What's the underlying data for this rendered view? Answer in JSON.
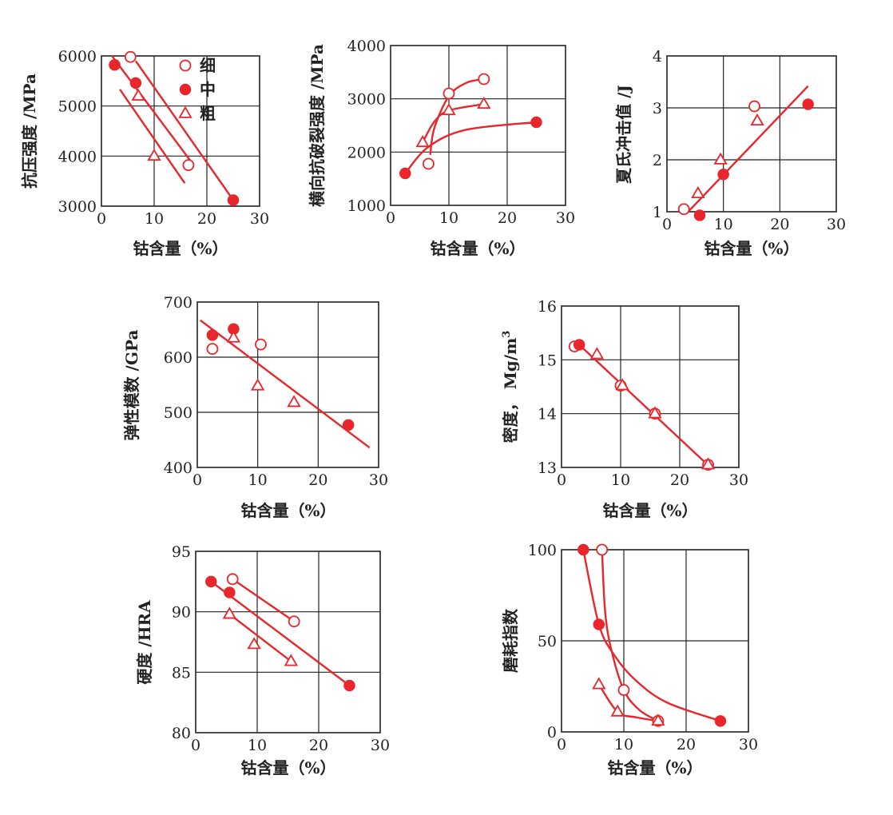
{
  "style": {
    "series_color": "#e8262b",
    "frame_color": "#222222",
    "grid_color": "#222222"
  },
  "legend": {
    "entries": [
      {
        "label": "细",
        "marker": "open-circle"
      },
      {
        "label": "中",
        "marker": "filled-circle"
      },
      {
        "label": "粗",
        "marker": "open-triangle"
      }
    ]
  },
  "chart_data": [
    {
      "type": "scatter",
      "id": "compressive",
      "title": "",
      "xlabel": "钴含量（%）",
      "ylabel": "抗压强度 /MPa",
      "xlim": [
        0,
        30
      ],
      "ylim": [
        3000,
        6000
      ],
      "x_ticks": [
        0,
        10,
        20,
        30
      ],
      "y_ticks": [
        3000,
        4000,
        5000,
        6000
      ],
      "x_tick_labels": [
        "0",
        "10",
        "20",
        "30"
      ],
      "y_tick_labels": [
        "3000",
        "4000",
        "5000",
        "6000"
      ],
      "grid": true,
      "legend": "top-right",
      "series": [
        {
          "name": "细",
          "marker": "open-circle",
          "points": [
            [
              5.5,
              5980
            ],
            [
              16.5,
              3820
            ]
          ]
        },
        {
          "name": "中",
          "marker": "filled-circle",
          "points": [
            [
              2.5,
              5820
            ],
            [
              6.5,
              5460
            ],
            [
              25,
              3120
            ]
          ]
        },
        {
          "name": "粗",
          "marker": "open-triangle",
          "points": [
            [
              7,
              5200
            ],
            [
              10,
              4000
            ]
          ]
        }
      ],
      "lines": [
        {
          "kind": "straight",
          "points": [
            [
              2,
              6000
            ],
            [
              17.5,
              3820
            ]
          ]
        },
        {
          "kind": "straight",
          "points": [
            [
              6.5,
              5900
            ],
            [
              25,
              3120
            ]
          ]
        },
        {
          "kind": "straight",
          "points": [
            [
              3.5,
              5330
            ],
            [
              15.8,
              3460
            ]
          ]
        }
      ]
    },
    {
      "type": "scatter",
      "id": "transverse-rupture",
      "title": "",
      "xlabel": "钴含量（%）",
      "ylabel": "横向抗破裂强度 /MPa",
      "xlim": [
        0,
        30
      ],
      "ylim": [
        1000,
        4000
      ],
      "x_ticks": [
        0,
        10,
        20,
        30
      ],
      "y_ticks": [
        1000,
        2000,
        3000,
        4000
      ],
      "x_tick_labels": [
        "0",
        "10",
        "20",
        "30"
      ],
      "y_tick_labels": [
        "1000",
        "2000",
        "3000",
        "4000"
      ],
      "grid": true,
      "series": [
        {
          "name": "细",
          "marker": "open-circle",
          "points": [
            [
              6.5,
              1780
            ],
            [
              10,
              3100
            ],
            [
              16,
              3370
            ]
          ]
        },
        {
          "name": "中",
          "marker": "filled-circle",
          "points": [
            [
              2.5,
              1600
            ],
            [
              25,
              2560
            ]
          ]
        },
        {
          "name": "粗",
          "marker": "open-triangle",
          "points": [
            [
              5.5,
              2180
            ],
            [
              10,
              2780
            ],
            [
              16,
              2900
            ]
          ]
        }
      ],
      "lines": [
        {
          "kind": "curve",
          "points": [
            [
              6.8,
              1950
            ],
            [
              7.5,
              2450
            ],
            [
              10,
              3050
            ],
            [
              13,
              3300
            ],
            [
              16,
              3370
            ]
          ]
        },
        {
          "kind": "curve",
          "points": [
            [
              2.5,
              1600
            ],
            [
              6.5,
              2100
            ],
            [
              13,
              2420
            ],
            [
              25,
              2560
            ]
          ]
        },
        {
          "kind": "curve",
          "points": [
            [
              5.5,
              2180
            ],
            [
              7.5,
              2570
            ],
            [
              10,
              2780
            ],
            [
              16,
              2900
            ]
          ]
        }
      ]
    },
    {
      "type": "scatter",
      "id": "charpy-impact",
      "title": "",
      "xlabel": "钴含量（%）",
      "ylabel": "夏氏冲击值 /J",
      "xlim": [
        0,
        30
      ],
      "ylim": [
        1,
        4
      ],
      "x_ticks": [
        0,
        10,
        20,
        30
      ],
      "y_ticks": [
        1,
        2,
        3,
        4
      ],
      "x_tick_labels": [
        "0",
        "10",
        "20",
        "30"
      ],
      "y_tick_labels": [
        "1",
        "2",
        "3",
        "4"
      ],
      "grid": true,
      "series": [
        {
          "name": "细",
          "marker": "open-circle",
          "points": [
            [
              3,
              1.05
            ],
            [
              15.5,
              3.03
            ]
          ]
        },
        {
          "name": "中",
          "marker": "filled-circle",
          "points": [
            [
              5.8,
              0.93
            ],
            [
              10,
              1.72
            ],
            [
              25,
              3.07
            ]
          ]
        },
        {
          "name": "粗",
          "marker": "open-triangle",
          "points": [
            [
              5.5,
              1.35
            ],
            [
              9.5,
              2.0
            ],
            [
              16,
              2.75
            ]
          ]
        }
      ],
      "lines": [
        {
          "kind": "straight",
          "points": [
            [
              3.5,
              0.97
            ],
            [
              25,
              3.42
            ]
          ]
        }
      ]
    },
    {
      "type": "scatter",
      "id": "elastic-modulus",
      "title": "",
      "xlabel": "钴含量（%）",
      "ylabel": "弹性模数 /GPa",
      "xlim": [
        0,
        30
      ],
      "ylim": [
        400,
        700
      ],
      "x_ticks": [
        0,
        10,
        20,
        30
      ],
      "y_ticks": [
        400,
        500,
        600,
        700
      ],
      "x_tick_labels": [
        "0",
        "10",
        "20",
        "30"
      ],
      "y_tick_labels": [
        "400",
        "500",
        "600",
        "700"
      ],
      "grid": true,
      "series": [
        {
          "name": "细",
          "marker": "open-circle",
          "points": [
            [
              2.5,
              615
            ],
            [
              10.5,
              623
            ]
          ]
        },
        {
          "name": "中",
          "marker": "filled-circle",
          "points": [
            [
              2.5,
              640
            ],
            [
              6,
              651
            ],
            [
              25,
              477
            ]
          ]
        },
        {
          "name": "粗",
          "marker": "open-triangle",
          "points": [
            [
              6,
              635
            ],
            [
              10,
              548
            ],
            [
              16,
              518
            ]
          ]
        }
      ],
      "lines": [
        {
          "kind": "straight",
          "points": [
            [
              0.5,
              667
            ],
            [
              28.5,
              436
            ]
          ]
        }
      ]
    },
    {
      "type": "scatter",
      "id": "density",
      "title": "",
      "xlabel": "钴含量（%）",
      "ylabel": "密度， Mg/m",
      "ylabel_superscript": "3",
      "xlim": [
        0,
        30
      ],
      "ylim": [
        13,
        16
      ],
      "x_ticks": [
        0,
        10,
        20,
        30
      ],
      "y_ticks": [
        13,
        14,
        15,
        16
      ],
      "x_tick_labels": [
        "0",
        "10",
        "20",
        "30"
      ],
      "y_tick_labels": [
        "13",
        "14",
        "15",
        "16"
      ],
      "grid": true,
      "series": [
        {
          "name": "细",
          "marker": "open-circle",
          "points": [
            [
              2.2,
              15.25
            ],
            [
              10,
              14.52
            ],
            [
              15.8,
              14.0
            ],
            [
              24.8,
              13.05
            ]
          ]
        },
        {
          "name": "中",
          "marker": "filled-circle",
          "points": [
            [
              3,
              15.28
            ]
          ]
        },
        {
          "name": "粗",
          "marker": "open-triangle",
          "points": [
            [
              6,
              15.1
            ],
            [
              10.3,
              14.52
            ],
            [
              15.8,
              14.0
            ],
            [
              24.8,
              13.05
            ]
          ]
        }
      ],
      "lines": [
        {
          "kind": "straight",
          "points": [
            [
              3,
              15.28
            ],
            [
              25,
              13.02
            ]
          ]
        }
      ]
    },
    {
      "type": "scatter",
      "id": "hardness",
      "title": "",
      "xlabel": "钴含量（%）",
      "ylabel": "硬度 /HRA",
      "xlim": [
        0,
        30
      ],
      "ylim": [
        80,
        95
      ],
      "x_ticks": [
        0,
        10,
        20,
        30
      ],
      "y_ticks": [
        80,
        85,
        90,
        95
      ],
      "x_tick_labels": [
        "0",
        "10",
        "20",
        "30"
      ],
      "y_tick_labels": [
        "80",
        "85",
        "90",
        "95"
      ],
      "grid": true,
      "series": [
        {
          "name": "细",
          "marker": "open-circle",
          "points": [
            [
              6,
              92.7
            ],
            [
              16,
              89.2
            ]
          ]
        },
        {
          "name": "中",
          "marker": "filled-circle",
          "points": [
            [
              2.5,
              92.5
            ],
            [
              5.5,
              91.6
            ],
            [
              25,
              83.9
            ]
          ]
        },
        {
          "name": "粗",
          "marker": "open-triangle",
          "points": [
            [
              5.5,
              89.8
            ],
            [
              9.5,
              87.3
            ],
            [
              15.5,
              85.9
            ]
          ]
        }
      ],
      "lines": [
        {
          "kind": "straight",
          "points": [
            [
              6,
              92.7
            ],
            [
              16,
              89.2
            ]
          ]
        },
        {
          "kind": "straight",
          "points": [
            [
              2.5,
              92.5
            ],
            [
              25,
              83.9
            ]
          ]
        },
        {
          "kind": "straight",
          "points": [
            [
              5.5,
              89.8
            ],
            [
              15.5,
              85.9
            ]
          ]
        }
      ]
    },
    {
      "type": "scatter",
      "id": "wear-index",
      "title": "",
      "xlabel": "钴含量（%）",
      "ylabel": "磨耗指数",
      "xlim": [
        0,
        30
      ],
      "ylim": [
        0,
        100
      ],
      "x_ticks": [
        0,
        10,
        20,
        30
      ],
      "y_ticks": [
        0,
        50,
        100
      ],
      "x_tick_labels": [
        "0",
        "10",
        "20",
        "30"
      ],
      "y_tick_labels": [
        "0",
        "50",
        "100"
      ],
      "grid": true,
      "series": [
        {
          "name": "细",
          "marker": "open-circle",
          "points": [
            [
              6.5,
              100
            ],
            [
              10,
              23
            ],
            [
              15.5,
              6
            ]
          ]
        },
        {
          "name": "中",
          "marker": "filled-circle",
          "points": [
            [
              3.5,
              100
            ],
            [
              6,
              59
            ],
            [
              25.5,
              6
            ]
          ]
        },
        {
          "name": "粗",
          "marker": "open-triangle",
          "points": [
            [
              6,
              26
            ],
            [
              9,
              11
            ],
            [
              15.5,
              6
            ]
          ]
        }
      ],
      "lines": [
        {
          "kind": "curve",
          "points": [
            [
              6.5,
              100
            ],
            [
              7,
              66
            ],
            [
              8,
              45
            ],
            [
              10,
              23
            ],
            [
              12.5,
              12
            ],
            [
              15.5,
              6
            ]
          ]
        },
        {
          "kind": "curve",
          "points": [
            [
              3.5,
              100
            ],
            [
              6,
              59
            ],
            [
              8.5,
              42
            ],
            [
              12,
              28
            ],
            [
              17,
              16
            ],
            [
              25.5,
              6
            ]
          ]
        },
        {
          "kind": "curve",
          "points": [
            [
              6,
              26
            ],
            [
              9,
              11
            ],
            [
              12,
              8
            ],
            [
              15.5,
              6
            ]
          ]
        }
      ]
    }
  ]
}
